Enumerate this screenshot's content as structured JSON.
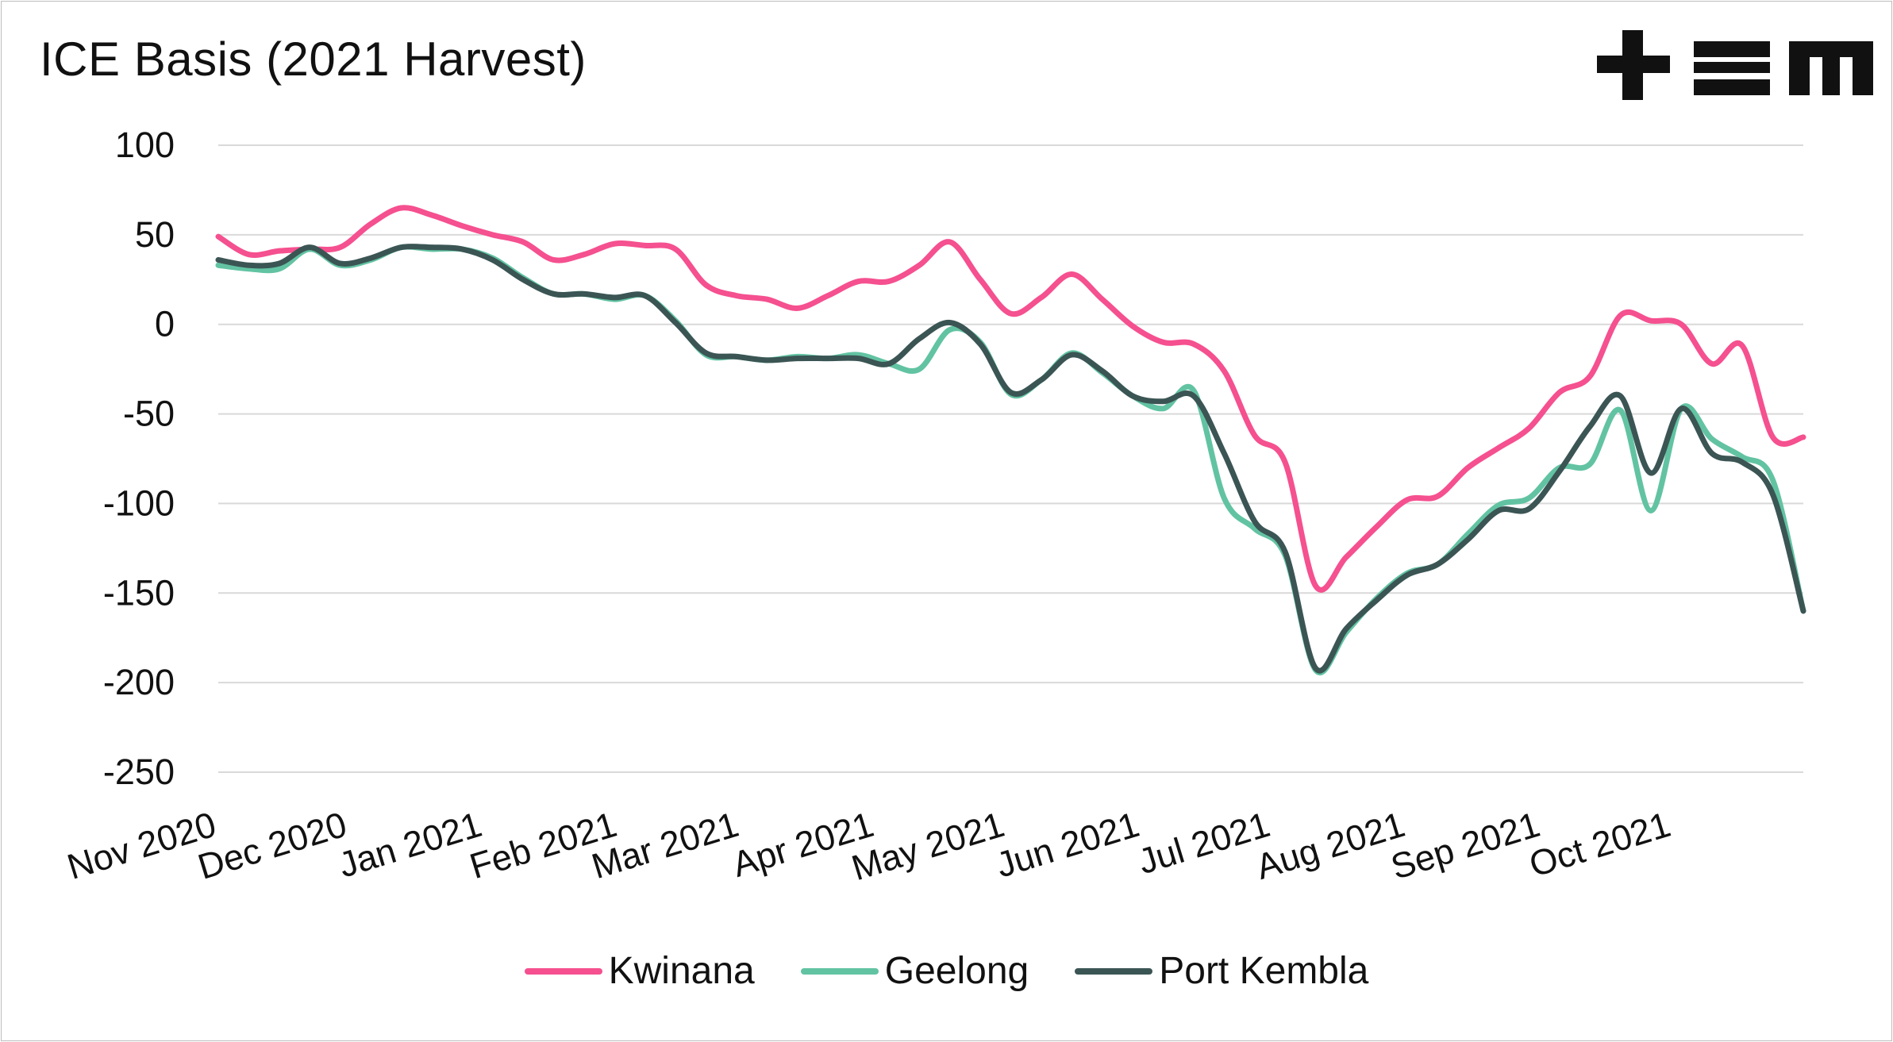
{
  "chart_data": {
    "type": "line",
    "title": "ICE Basis (2021 Harvest)",
    "xlabel": "",
    "ylabel": "",
    "ylim": [
      -250,
      100
    ],
    "yticks": [
      "100",
      "50",
      "0",
      "-50",
      "-100",
      "-150",
      "-200",
      "-250"
    ],
    "ytick_values": [
      100,
      50,
      0,
      -50,
      -100,
      -150,
      -200,
      -250
    ],
    "x_labels": [
      "Nov 2020",
      "Dec 2020",
      "Jan 2021",
      "Feb 2021",
      "Mar 2021",
      "Apr 2021",
      "May 2021",
      "Jun 2021",
      "Jul 2021",
      "Aug 2021",
      "Sep 2021",
      "Oct 2021"
    ],
    "x_label_dates": [
      "2020-11-01",
      "2020-12-01",
      "2021-01-01",
      "2021-02-01",
      "2021-03-01",
      "2021-04-01",
      "2021-05-01",
      "2021-06-01",
      "2021-07-01",
      "2021-08-01",
      "2021-09-01",
      "2021-10-01"
    ],
    "x": [
      "2020-11-01",
      "2020-11-08",
      "2020-11-15",
      "2020-11-22",
      "2020-11-29",
      "2020-12-06",
      "2020-12-13",
      "2020-12-20",
      "2020-12-27",
      "2021-01-03",
      "2021-01-10",
      "2021-01-17",
      "2021-01-24",
      "2021-01-31",
      "2021-02-07",
      "2021-02-14",
      "2021-02-21",
      "2021-02-28",
      "2021-03-07",
      "2021-03-14",
      "2021-03-21",
      "2021-03-28",
      "2021-04-04",
      "2021-04-11",
      "2021-04-18",
      "2021-04-25",
      "2021-05-02",
      "2021-05-09",
      "2021-05-16",
      "2021-05-23",
      "2021-05-30",
      "2021-06-06",
      "2021-06-13",
      "2021-06-20",
      "2021-06-27",
      "2021-07-04",
      "2021-07-11",
      "2021-07-18",
      "2021-07-25",
      "2021-08-01",
      "2021-08-08",
      "2021-08-15",
      "2021-08-22",
      "2021-08-29",
      "2021-09-05",
      "2021-09-12",
      "2021-09-19",
      "2021-09-26",
      "2021-10-03",
      "2021-10-10",
      "2021-10-17",
      "2021-10-24",
      "2021-10-31"
    ],
    "series": [
      {
        "name": "Kwinana",
        "color": "#f5508f",
        "values": [
          49,
          39,
          41,
          42,
          43,
          56,
          65,
          61,
          55,
          50,
          46,
          36,
          39,
          45,
          44,
          42,
          22,
          16,
          14,
          9,
          16,
          24,
          24,
          33,
          46,
          25,
          6,
          15,
          28,
          14,
          -1,
          -10,
          -11,
          -26,
          -62,
          -77,
          -146,
          -130,
          -113,
          -98,
          -96,
          -80,
          -69,
          -58,
          -38,
          -29,
          5,
          2,
          0,
          -22,
          -12,
          -63,
          -63
        ]
      },
      {
        "name": "Geelong",
        "color": "#62c3a2",
        "values": [
          33,
          31,
          31,
          42,
          33,
          36,
          43,
          42,
          42,
          37,
          26,
          17,
          17,
          14,
          16,
          2,
          -17,
          -18,
          -20,
          -18,
          -19,
          -17,
          -22,
          -25,
          -3,
          -10,
          -39,
          -31,
          -16,
          -27,
          -40,
          -47,
          -37,
          -97,
          -114,
          -129,
          -193,
          -172,
          -153,
          -139,
          -134,
          -117,
          -101,
          -97,
          -80,
          -78,
          -48,
          -104,
          -47,
          -64,
          -74,
          -87,
          -160
        ]
      },
      {
        "name": "Port Kembla",
        "color": "#3b5554",
        "values": [
          36,
          33,
          34,
          43,
          34,
          37,
          43,
          43,
          42,
          36,
          25,
          17,
          17,
          15,
          16,
          1,
          -16,
          -18,
          -20,
          -19,
          -19,
          -19,
          -22,
          -8,
          1,
          -11,
          -38,
          -31,
          -17,
          -26,
          -40,
          -43,
          -40,
          -72,
          -110,
          -127,
          -192,
          -170,
          -154,
          -140,
          -134,
          -120,
          -104,
          -103,
          -82,
          -57,
          -40,
          -83,
          -47,
          -72,
          -77,
          -95,
          -160
        ]
      }
    ]
  },
  "branding": {
    "logo_name": "tem-logo"
  }
}
